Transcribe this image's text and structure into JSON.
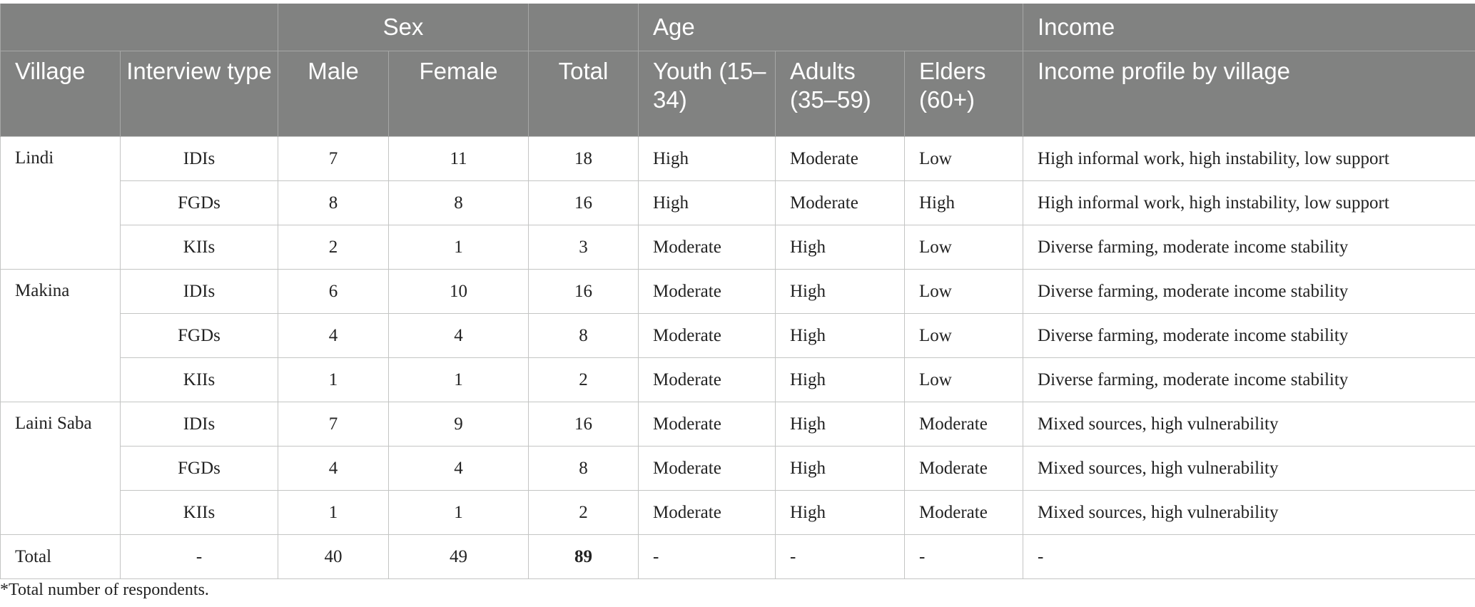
{
  "header": {
    "groups": {
      "sex": "Sex",
      "age": "Age",
      "income": "Income"
    },
    "columns": {
      "village": "Village",
      "interview_type": "Interview type",
      "male": "Male",
      "female": "Female",
      "total": "Total",
      "youth": "Youth (15–34)",
      "adults": "Adults (35–59)",
      "elders": "Elders (60+)",
      "income_profile": "Income profile by village"
    }
  },
  "villages": [
    {
      "name": "Lindi",
      "rows": [
        {
          "type": "IDIs",
          "male": "7",
          "female": "11",
          "total": "18",
          "youth": "High",
          "adults": "Moderate",
          "elders": "Low",
          "income": "High informal work, high instability, low support"
        },
        {
          "type": "FGDs",
          "male": "8",
          "female": "8",
          "total": "16",
          "youth": "High",
          "adults": "Moderate",
          "elders": "High",
          "income": "High informal work, high instability, low support"
        },
        {
          "type": "KIIs",
          "male": "2",
          "female": "1",
          "total": "3",
          "youth": "Moderate",
          "adults": "High",
          "elders": "Low",
          "income": "Diverse farming, moderate income stability"
        }
      ]
    },
    {
      "name": "Makina",
      "rows": [
        {
          "type": "IDIs",
          "male": "6",
          "female": "10",
          "total": "16",
          "youth": "Moderate",
          "adults": "High",
          "elders": "Low",
          "income": "Diverse farming, moderate income stability"
        },
        {
          "type": "FGDs",
          "male": "4",
          "female": "4",
          "total": "8",
          "youth": "Moderate",
          "adults": "High",
          "elders": "Low",
          "income": "Diverse farming, moderate income stability"
        },
        {
          "type": "KIIs",
          "male": "1",
          "female": "1",
          "total": "2",
          "youth": "Moderate",
          "adults": "High",
          "elders": "Low",
          "income": "Diverse farming, moderate income stability"
        }
      ]
    },
    {
      "name": "Laini Saba",
      "rows": [
        {
          "type": "IDIs",
          "male": "7",
          "female": "9",
          "total": "16",
          "youth": "Moderate",
          "adults": "High",
          "elders": "Moderate",
          "income": "Mixed sources, high vulnerability"
        },
        {
          "type": "FGDs",
          "male": "4",
          "female": "4",
          "total": "8",
          "youth": "Moderate",
          "adults": "High",
          "elders": "Moderate",
          "income": "Mixed sources, high vulnerability"
        },
        {
          "type": "KIIs",
          "male": "1",
          "female": "1",
          "total": "2",
          "youth": "Moderate",
          "adults": "High",
          "elders": "Moderate",
          "income": "Mixed sources, high vulnerability"
        }
      ]
    }
  ],
  "total_row": {
    "label": "Total",
    "type": "-",
    "male": "40",
    "female": "49",
    "total": "89",
    "youth": "-",
    "adults": "-",
    "elders": "-",
    "income": "-"
  },
  "footnote": "*Total number of respondents.",
  "colors": {
    "header_bg": "#818281",
    "header_text": "#ffffff",
    "border": "#c4c5c4"
  }
}
